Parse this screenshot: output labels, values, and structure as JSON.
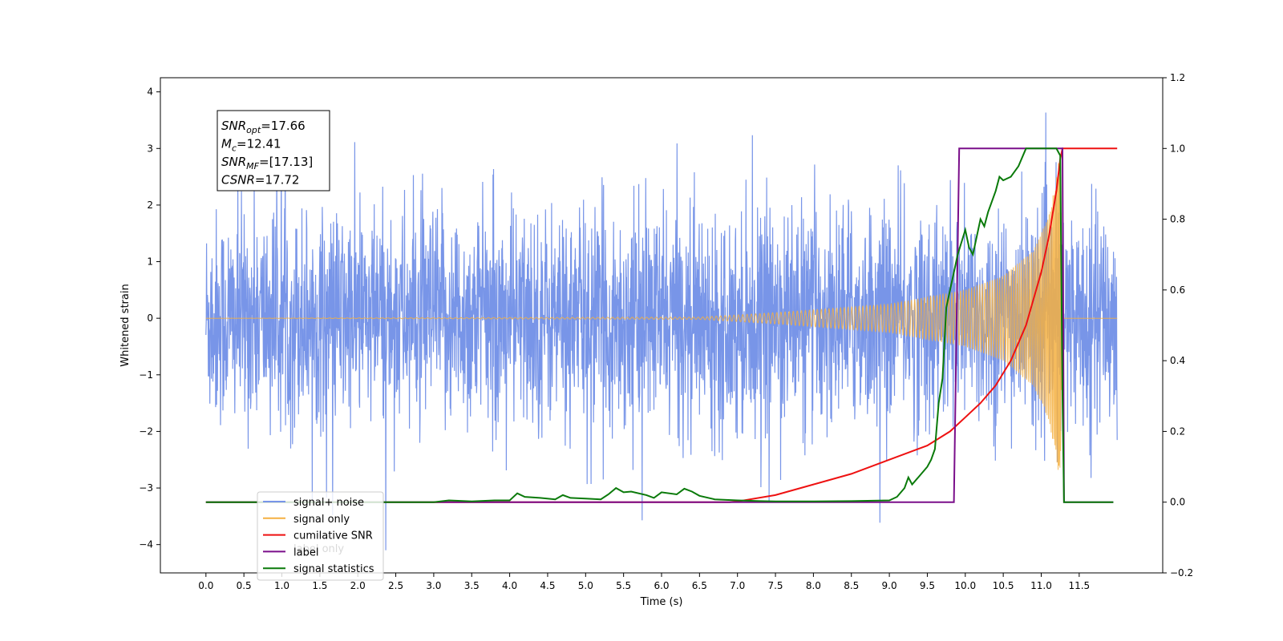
{
  "chart_data": {
    "type": "line",
    "title": "",
    "xlabel": "Time (s)",
    "ylabel": "Whitened strain",
    "y2label": "",
    "xlim": [
      -0.6,
      12.6
    ],
    "ylim": [
      -4.5,
      4.25
    ],
    "y2lim": [
      -0.2,
      1.2
    ],
    "x_ticks": [
      "0.0",
      "0.5",
      "1.0",
      "1.5",
      "2.0",
      "2.5",
      "3.0",
      "3.5",
      "4.0",
      "4.5",
      "5.0",
      "5.5",
      "6.0",
      "6.5",
      "7.0",
      "7.5",
      "8.0",
      "8.5",
      "9.0",
      "9.5",
      "10.0",
      "10.5",
      "11.0",
      "11.5"
    ],
    "y_ticks": [
      4,
      3,
      2,
      1,
      0,
      -1,
      -2,
      -3,
      -4
    ],
    "y2_ticks": [
      "1.2",
      "1.0",
      "0.8",
      "0.6",
      "0.4",
      "0.2",
      "0.0",
      "-0.2"
    ],
    "grid": false,
    "legend_position": "lower-left",
    "annotation": [
      {
        "main": "SNR",
        "sub": "opt",
        "value": "=17.66"
      },
      {
        "main": "M",
        "sub": "c",
        "value": "=12.41"
      },
      {
        "main": "SNR",
        "sub": "MF",
        "value": "=[17.13]"
      },
      {
        "main": "CSNR",
        "sub": "",
        "value": "=17.72"
      }
    ],
    "series": [
      {
        "name": "signal+ noise",
        "color": "#7895e8",
        "axis": "left",
        "style": "noise",
        "x_range": [
          0.0,
          12.0
        ],
        "typical_amplitude": 1.7,
        "peak_range": [
          -4.1,
          3.9
        ]
      },
      {
        "name": "signal only",
        "color": "#f5b041",
        "axis": "left",
        "style": "chirp",
        "x_range": [
          0.0,
          11.28
        ],
        "envelope_points": [
          [
            0,
            0.0
          ],
          [
            6.5,
            0.02
          ],
          [
            7.5,
            0.1
          ],
          [
            9.0,
            0.25
          ],
          [
            10.0,
            0.5
          ],
          [
            10.5,
            0.75
          ],
          [
            10.9,
            1.2
          ],
          [
            11.1,
            1.8
          ],
          [
            11.2,
            2.5
          ],
          [
            11.25,
            3.0
          ],
          [
            11.28,
            0.0
          ]
        ]
      },
      {
        "name": "cumilative SNR",
        "color": "#ee1111",
        "axis": "right",
        "x": [
          0,
          6.9,
          7.0,
          7.5,
          8.0,
          8.5,
          9.0,
          9.5,
          9.8,
          10.0,
          10.2,
          10.4,
          10.6,
          10.8,
          11.0,
          11.1,
          11.2,
          11.25,
          11.28,
          12.0
        ],
        "values": [
          0,
          0,
          0.002,
          0.02,
          0.05,
          0.08,
          0.12,
          0.16,
          0.2,
          0.24,
          0.28,
          0.33,
          0.4,
          0.5,
          0.65,
          0.75,
          0.88,
          0.97,
          1.0,
          1.0
        ]
      },
      {
        "name": "label",
        "color": "#7a0e8a",
        "axis": "right",
        "x": [
          0,
          9.85,
          9.92,
          11.28,
          11.3,
          11.95
        ],
        "values": [
          0,
          0,
          1.0,
          1.0,
          0,
          0
        ]
      },
      {
        "name": "signal statistics",
        "color": "#0a7a0a",
        "axis": "right",
        "x": [
          0,
          3.0,
          3.2,
          3.5,
          3.8,
          4.0,
          4.1,
          4.2,
          4.4,
          4.6,
          4.7,
          4.8,
          5.0,
          5.2,
          5.3,
          5.4,
          5.5,
          5.6,
          5.8,
          5.9,
          6.0,
          6.2,
          6.3,
          6.4,
          6.5,
          6.7,
          7.0,
          7.3,
          7.5,
          8.0,
          8.5,
          9.0,
          9.1,
          9.2,
          9.25,
          9.3,
          9.4,
          9.5,
          9.55,
          9.6,
          9.65,
          9.7,
          9.75,
          9.8,
          9.85,
          9.9,
          10.0,
          10.05,
          10.1,
          10.2,
          10.25,
          10.3,
          10.4,
          10.45,
          10.5,
          10.6,
          10.7,
          10.8,
          10.9,
          11.0,
          11.1,
          11.2,
          11.25,
          11.28,
          11.3,
          11.35,
          11.95
        ],
        "values": [
          0,
          0,
          0.005,
          0.002,
          0.005,
          0.005,
          0.025,
          0.015,
          0.012,
          0.008,
          0.02,
          0.012,
          0.01,
          0.008,
          0.022,
          0.04,
          0.028,
          0.03,
          0.02,
          0.012,
          0.028,
          0.022,
          0.038,
          0.03,
          0.018,
          0.008,
          0.005,
          0.003,
          0.002,
          0.002,
          0.003,
          0.005,
          0.015,
          0.04,
          0.07,
          0.05,
          0.075,
          0.1,
          0.12,
          0.15,
          0.28,
          0.35,
          0.55,
          0.6,
          0.65,
          0.7,
          0.77,
          0.72,
          0.7,
          0.8,
          0.78,
          0.82,
          0.88,
          0.92,
          0.91,
          0.92,
          0.95,
          1.0,
          1.0,
          1.0,
          1.0,
          1.0,
          0.98,
          0.3,
          0.0,
          0.0,
          0.0
        ]
      }
    ],
    "legend_ghost_text": "label only"
  }
}
